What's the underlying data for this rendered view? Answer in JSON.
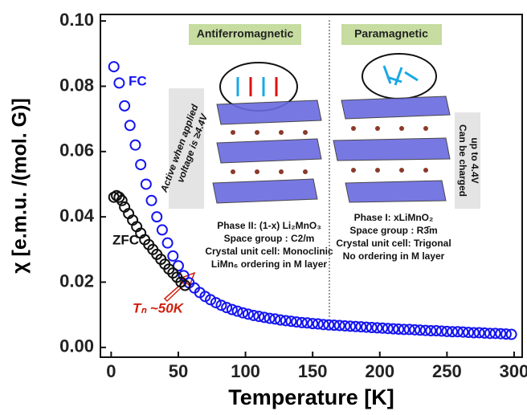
{
  "chart_data": {
    "type": "scatter",
    "xlabel": "Temperature [K]",
    "ylabel": "χ [e.m.u. /(mol. G)]",
    "xlim": [
      -8,
      306
    ],
    "ylim": [
      -0.003,
      0.102
    ],
    "xticks": [
      0,
      50,
      100,
      150,
      200,
      250,
      300
    ],
    "yticks": [
      {
        "value": 0,
        "label": "0.00"
      },
      0.02,
      0.04,
      0.06,
      0.08,
      {
        "value": 0.1,
        "label": "0.10"
      }
    ],
    "series": [
      {
        "name": "FC",
        "color": "#1515f0",
        "x": [
          2,
          6,
          10,
          14,
          18,
          22,
          26,
          30,
          34,
          38,
          42,
          46,
          50,
          54,
          58,
          62,
          66,
          70,
          74,
          78,
          82,
          86,
          90,
          94,
          98,
          102,
          106,
          110,
          114,
          118,
          122,
          126,
          130,
          134,
          138,
          142,
          146,
          150,
          154,
          158,
          162,
          166,
          170,
          174,
          178,
          182,
          186,
          190,
          194,
          198,
          202,
          206,
          210,
          214,
          218,
          222,
          226,
          230,
          234,
          238,
          242,
          246,
          250,
          254,
          258,
          262,
          266,
          270,
          274,
          278,
          282,
          286,
          290,
          294,
          298
        ],
        "values": [
          0.086,
          0.081,
          0.074,
          0.068,
          0.062,
          0.056,
          0.05,
          0.045,
          0.04,
          0.036,
          0.032,
          0.028,
          0.025,
          0.022,
          0.0198,
          0.0182,
          0.0168,
          0.0156,
          0.0146,
          0.0137,
          0.0129,
          0.0122,
          0.0116,
          0.0111,
          0.0106,
          0.0102,
          0.0098,
          0.0095,
          0.0092,
          0.0089,
          0.0087,
          0.0084,
          0.0082,
          0.008,
          0.0078,
          0.0076,
          0.0075,
          0.0073,
          0.0072,
          0.007,
          0.0069,
          0.0068,
          0.0067,
          0.0066,
          0.0065,
          0.0064,
          0.0063,
          0.0062,
          0.0061,
          0.006,
          0.0059,
          0.0058,
          0.0057,
          0.0056,
          0.0055,
          0.0055,
          0.0054,
          0.0053,
          0.0052,
          0.0051,
          0.0051,
          0.005,
          0.0049,
          0.0048,
          0.0048,
          0.0047,
          0.0046,
          0.0045,
          0.0045,
          0.0044,
          0.0043,
          0.0043,
          0.0042,
          0.0041,
          0.004
        ]
      },
      {
        "name": "ZFC",
        "color": "#111111",
        "x": [
          2,
          4,
          6,
          8,
          10,
          13,
          16,
          19,
          22,
          25,
          28,
          31,
          34,
          37,
          40,
          43,
          46,
          49,
          52,
          55
        ],
        "values": [
          0.046,
          0.0465,
          0.046,
          0.045,
          0.043,
          0.041,
          0.039,
          0.037,
          0.035,
          0.033,
          0.0315,
          0.03,
          0.0285,
          0.027,
          0.0255,
          0.024,
          0.0228,
          0.0215,
          0.02,
          0.019
        ]
      }
    ],
    "annotation": "Tₙ ~50K",
    "inset": {
      "left_title": "Antiferromagnetic",
      "right_title": "Paramagnetic",
      "left_note": [
        "Active when applied",
        "voltage is ≥4.4V"
      ],
      "right_note": [
        "Can be charged",
        "up to 4.4V"
      ],
      "left_text": [
        "Phase II: (1-x) Li₂MnO₃",
        "Space group : C2/m",
        "Crystal unit cell: Monoclinic",
        "LiMn₆ ordering in M layer"
      ],
      "right_text": [
        "Phase I: xLiMnO₂",
        "Space group : R3̄m",
        "Crystal unit cell: Trigonal",
        "No ordering in M layer"
      ]
    }
  }
}
